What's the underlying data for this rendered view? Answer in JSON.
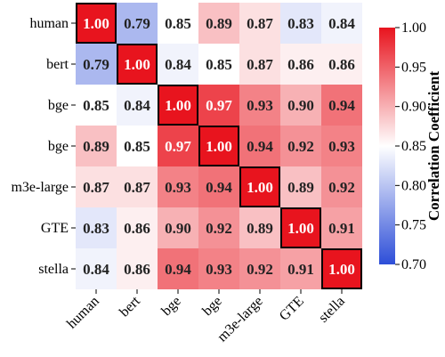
{
  "chart_data": {
    "type": "heatmap",
    "title": "",
    "xlabel": "",
    "ylabel": "",
    "row_labels": [
      "human",
      "bert",
      "bge",
      "bge",
      "m3e-large",
      "GTE",
      "stella"
    ],
    "col_labels": [
      "human",
      "bert",
      "bge",
      "bge",
      "m3e-large",
      "GTE",
      "stella"
    ],
    "values": [
      [
        1.0,
        0.79,
        0.85,
        0.89,
        0.87,
        0.83,
        0.84
      ],
      [
        0.79,
        1.0,
        0.84,
        0.85,
        0.87,
        0.86,
        0.86
      ],
      [
        0.85,
        0.84,
        1.0,
        0.97,
        0.93,
        0.9,
        0.94
      ],
      [
        0.89,
        0.85,
        0.97,
        1.0,
        0.94,
        0.92,
        0.93
      ],
      [
        0.87,
        0.87,
        0.93,
        0.94,
        1.0,
        0.89,
        0.92
      ],
      [
        0.83,
        0.86,
        0.9,
        0.92,
        0.89,
        1.0,
        0.91
      ],
      [
        0.84,
        0.86,
        0.94,
        0.93,
        0.92,
        0.91,
        1.0
      ]
    ],
    "value_labels": [
      [
        "1.00",
        "0.79",
        "0.85",
        "0.89",
        "0.87",
        "0.83",
        "0.84"
      ],
      [
        "0.79",
        "1.00",
        "0.84",
        "0.85",
        "0.87",
        "0.86",
        "0.86"
      ],
      [
        "0.85",
        "0.84",
        "1.00",
        "0.97",
        "0.93",
        "0.90",
        "0.94"
      ],
      [
        "0.89",
        "0.85",
        "0.97",
        "1.00",
        "0.94",
        "0.92",
        "0.93"
      ],
      [
        "0.87",
        "0.87",
        "0.93",
        "0.94",
        "1.00",
        "0.89",
        "0.92"
      ],
      [
        "0.83",
        "0.86",
        "0.90",
        "0.92",
        "0.89",
        "1.00",
        "0.91"
      ],
      [
        "0.84",
        "0.86",
        "0.94",
        "0.93",
        "0.92",
        "0.91",
        "1.00"
      ]
    ],
    "highlight_diagonal": true,
    "colorbar": {
      "label": "Correlation Coefficient",
      "min": 0.7,
      "max": 1.0,
      "ticks": [
        "1.00",
        "0.95",
        "0.90",
        "0.85",
        "0.80",
        "0.75",
        "0.70"
      ],
      "colormap": "bwr",
      "colors": {
        "low": "#2d4ed8",
        "mid": "#ffffff",
        "high": "#e8141e"
      }
    },
    "legend": "none",
    "grid": false
  }
}
